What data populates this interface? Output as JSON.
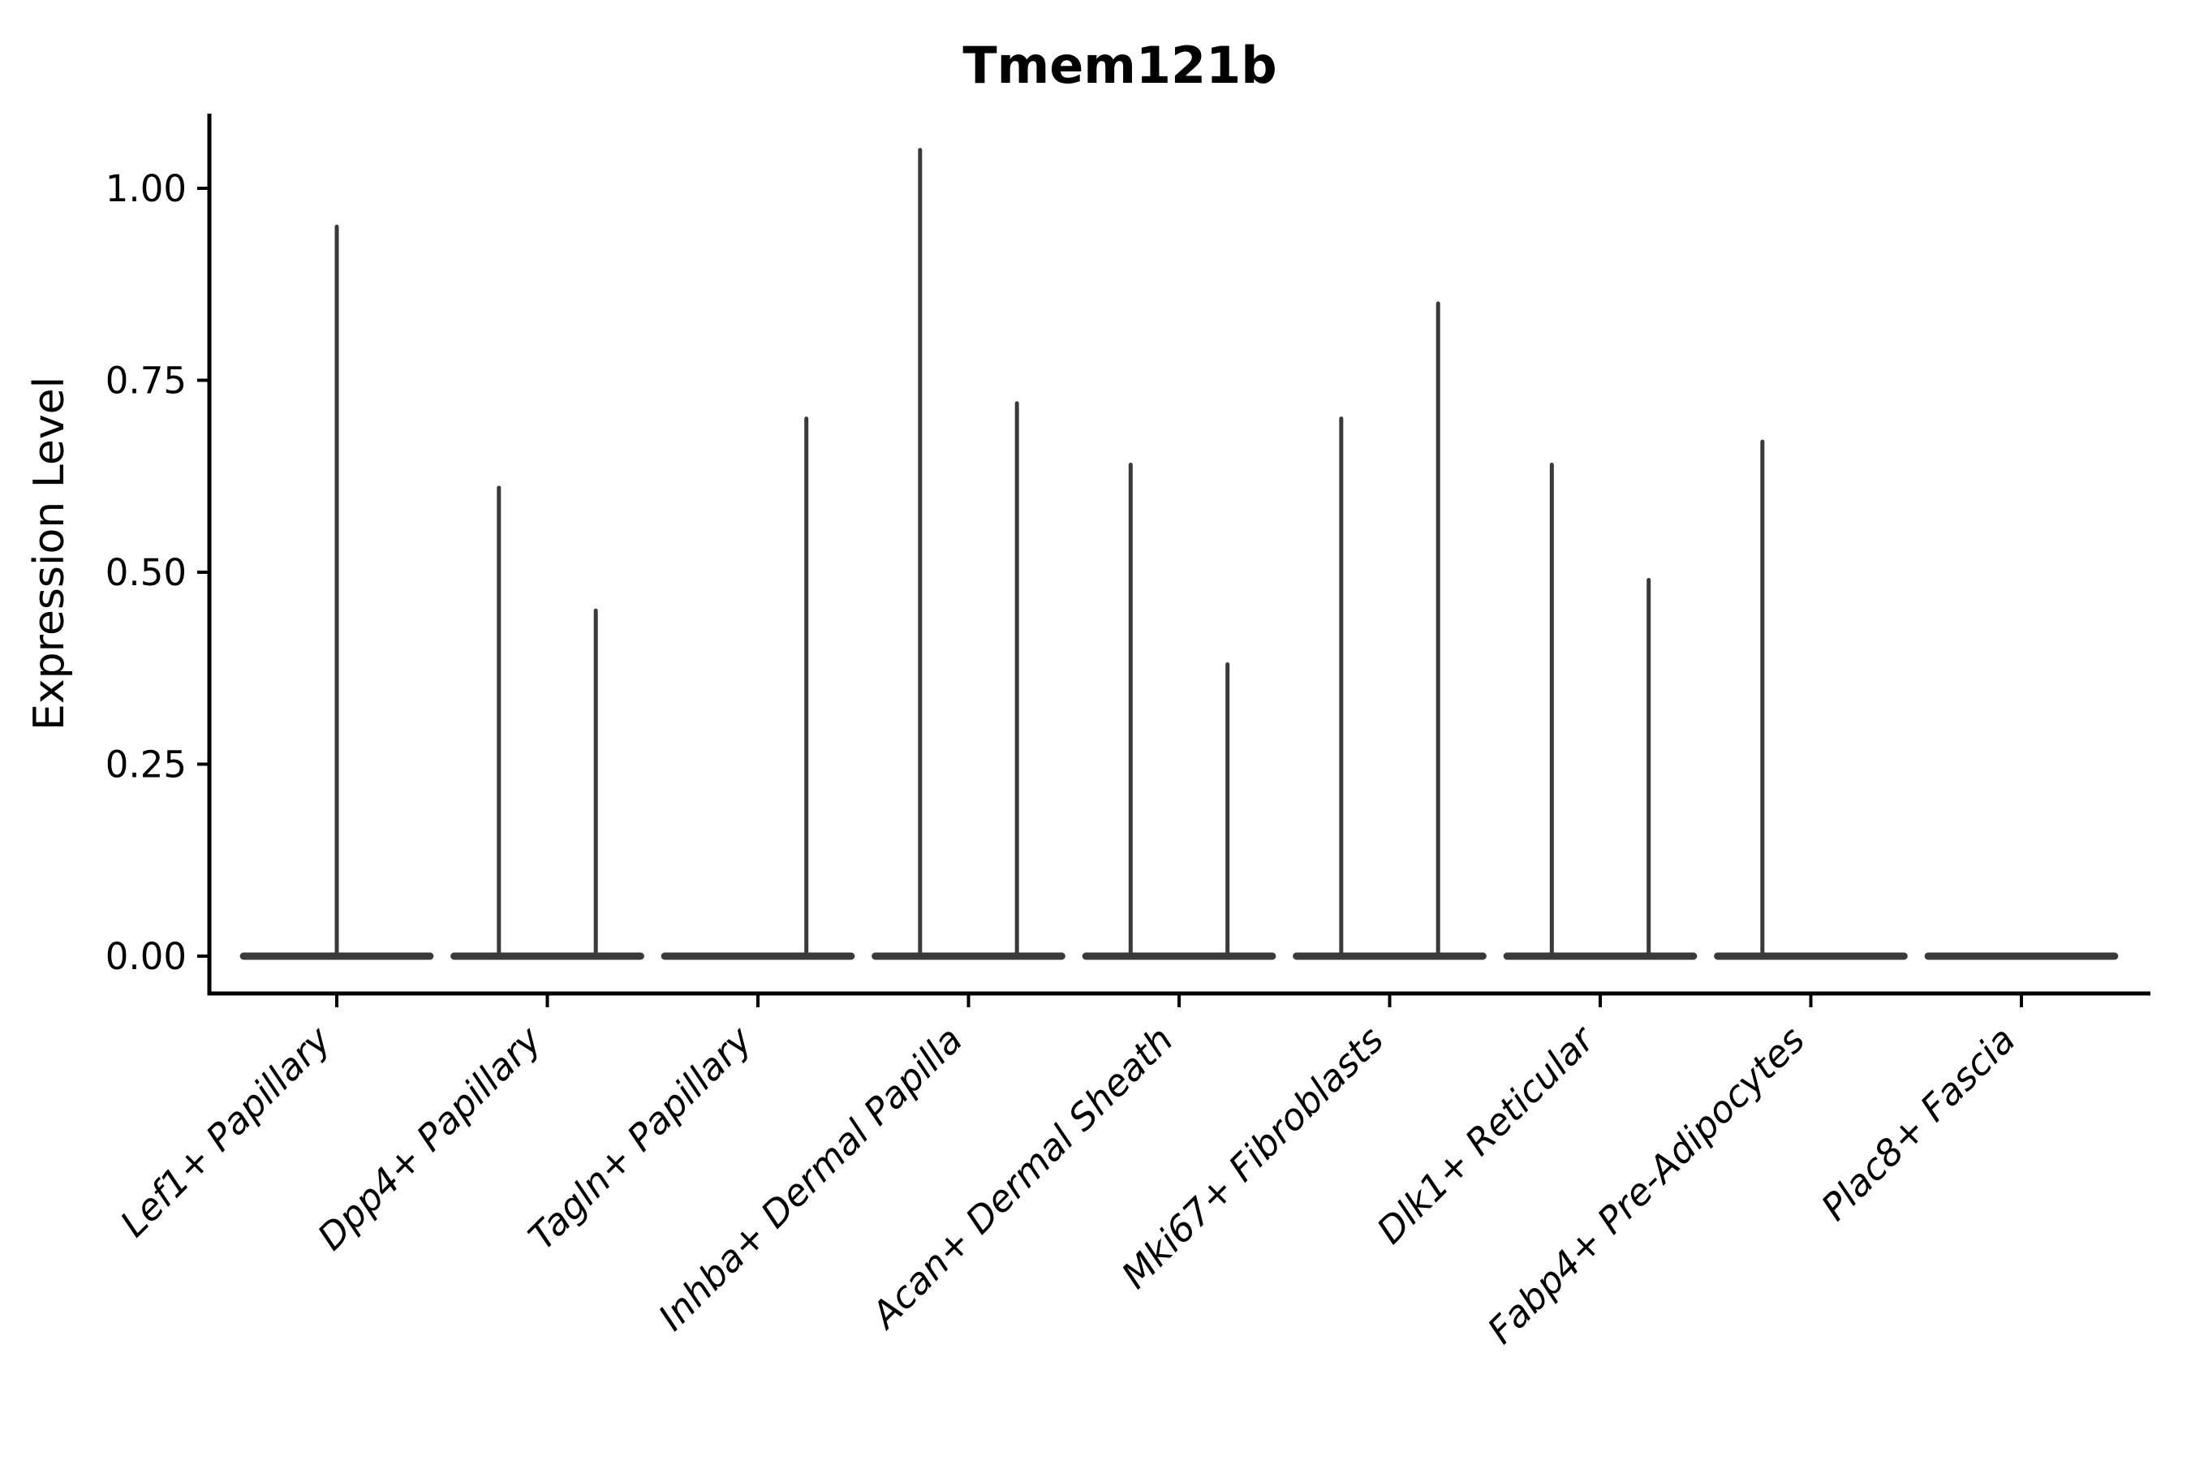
{
  "chart_data": {
    "type": "violin",
    "title": "Tmem121b",
    "ylabel": "Expression Level",
    "xlabel": "",
    "grid": false,
    "legend": null,
    "ylim": [
      -0.049,
      1.097
    ],
    "ytick_labels": [
      "0.00",
      "0.25",
      "0.50",
      "0.75",
      "1.00"
    ],
    "ytick_values": [
      0.0,
      0.25,
      0.5,
      0.75,
      1.0
    ],
    "categories": [
      "Lef1+ Papillary",
      "Dpp4+ Papillary",
      "Tagln+ Papillary",
      "Inhba+ Dermal Papilla",
      "Acan+ Dermal Sheath",
      "Mki67+ Fibroblasts",
      "Dlk1+ Reticular",
      "Fabp4+ Pre-Adipocytes",
      "Plac8+ Fascia"
    ],
    "violins": [
      {
        "category": "Lef1+ Papillary",
        "base_halfwidth_frac": 0.46,
        "spikes": [
          {
            "offset_frac": 0.0,
            "value": 0.95
          }
        ]
      },
      {
        "category": "Dpp4+ Papillary",
        "base_halfwidth_frac": 0.46,
        "spikes": [
          {
            "offset_frac": -0.23,
            "value": 0.61
          },
          {
            "offset_frac": 0.23,
            "value": 0.45
          }
        ]
      },
      {
        "category": "Tagln+ Papillary",
        "base_halfwidth_frac": 0.46,
        "spikes": [
          {
            "offset_frac": 0.23,
            "value": 0.7
          }
        ]
      },
      {
        "category": "Inhba+ Dermal Papilla",
        "base_halfwidth_frac": 0.46,
        "spikes": [
          {
            "offset_frac": -0.23,
            "value": 1.05
          },
          {
            "offset_frac": 0.23,
            "value": 0.72
          }
        ]
      },
      {
        "category": "Acan+ Dermal Sheath",
        "base_halfwidth_frac": 0.46,
        "spikes": [
          {
            "offset_frac": -0.23,
            "value": 0.64
          },
          {
            "offset_frac": 0.23,
            "value": 0.38
          }
        ]
      },
      {
        "category": "Mki67+ Fibroblasts",
        "base_halfwidth_frac": 0.46,
        "spikes": [
          {
            "offset_frac": -0.23,
            "value": 0.7
          },
          {
            "offset_frac": 0.23,
            "value": 0.85
          }
        ]
      },
      {
        "category": "Dlk1+ Reticular",
        "base_halfwidth_frac": 0.46,
        "spikes": [
          {
            "offset_frac": -0.23,
            "value": 0.64
          },
          {
            "offset_frac": 0.23,
            "value": 0.49
          }
        ]
      },
      {
        "category": "Fabp4+ Pre-Adipocytes",
        "base_halfwidth_frac": 0.46,
        "spikes": [
          {
            "offset_frac": -0.23,
            "value": 0.67
          }
        ]
      },
      {
        "category": "Plac8+ Fascia",
        "base_halfwidth_frac": 0.46,
        "spikes": []
      }
    ],
    "colors": {
      "violin": "#3a3a3a",
      "axis": "#000000",
      "text": "#000000",
      "background": "#ffffff"
    }
  }
}
